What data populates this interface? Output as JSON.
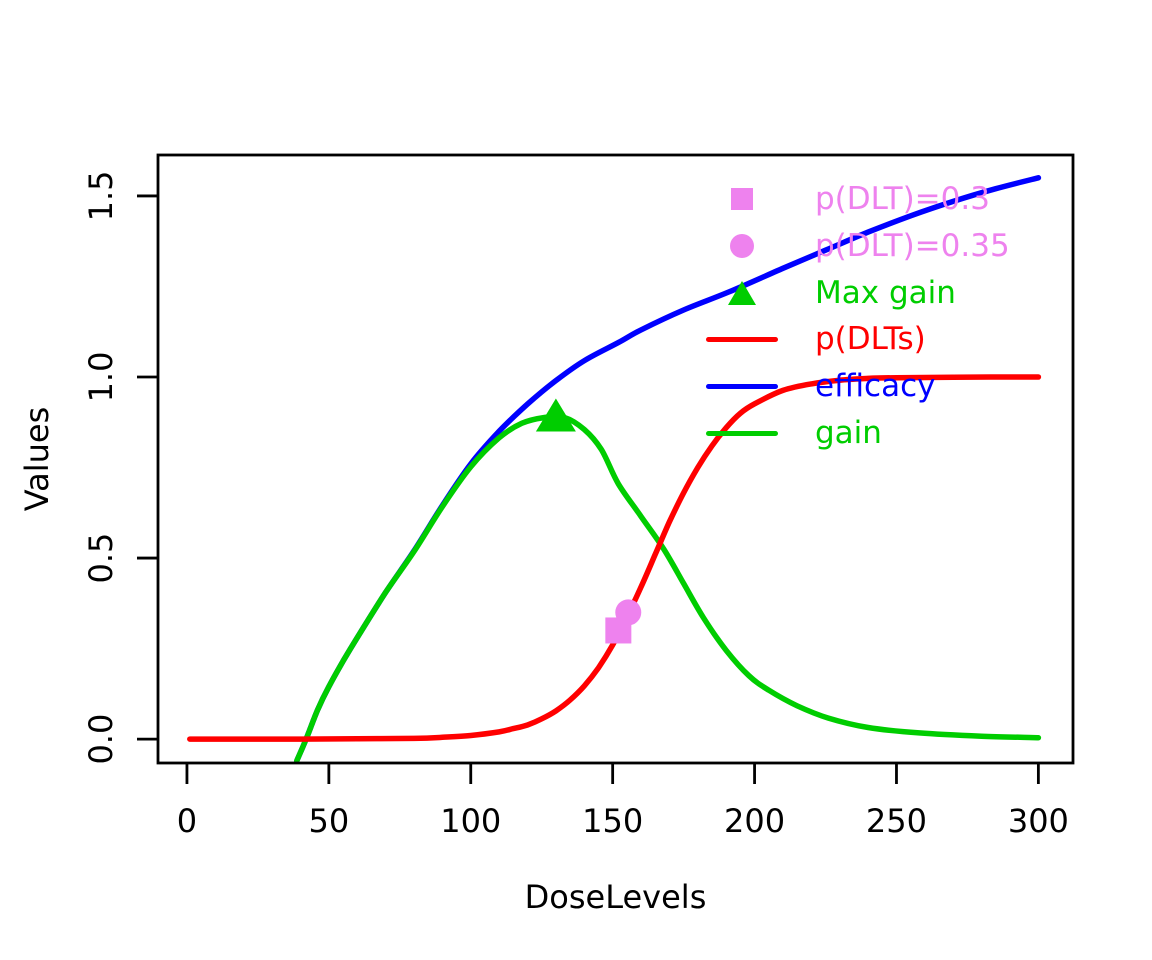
{
  "figure": {
    "background": "#ffffff",
    "axis_color": "#000000"
  },
  "chart_data": {
    "type": "line",
    "title": "",
    "xlabel": "DoseLevels",
    "ylabel": "Values",
    "x_ticks": [
      0,
      50,
      100,
      150,
      200,
      250,
      300
    ],
    "y_ticks": [
      "0.0",
      "0.5",
      "1.0",
      "1.5"
    ],
    "xlim": [
      -10.2,
      312.2
    ],
    "ylim": [
      -0.066,
      1.613
    ],
    "grid": false,
    "legend_position": "topright",
    "series": [
      {
        "name": "efficacy",
        "color": "#0000FF",
        "points": [
          [
            38.7,
            -0.06
          ],
          [
            42,
            0
          ],
          [
            46,
            0.08
          ],
          [
            50,
            0.145
          ],
          [
            55,
            0.215
          ],
          [
            60,
            0.28
          ],
          [
            70,
            0.405
          ],
          [
            80,
            0.52
          ],
          [
            90,
            0.645
          ],
          [
            100,
            0.76
          ],
          [
            110,
            0.85
          ],
          [
            120,
            0.925
          ],
          [
            130,
            0.99
          ],
          [
            140,
            1.045
          ],
          [
            152,
            1.095
          ],
          [
            160,
            1.13
          ],
          [
            175,
            1.185
          ],
          [
            191,
            1.235
          ],
          [
            210,
            1.3
          ],
          [
            225,
            1.35
          ],
          [
            240,
            1.4
          ],
          [
            255,
            1.445
          ],
          [
            270,
            1.485
          ],
          [
            285,
            1.52
          ],
          [
            300,
            1.55
          ]
        ]
      },
      {
        "name": "gain",
        "color": "#00CD00",
        "points": [
          [
            38.7,
            -0.06
          ],
          [
            42,
            0
          ],
          [
            46,
            0.08
          ],
          [
            50,
            0.145
          ],
          [
            55,
            0.215
          ],
          [
            60,
            0.28
          ],
          [
            70,
            0.405
          ],
          [
            80,
            0.518
          ],
          [
            90,
            0.642
          ],
          [
            100,
            0.752
          ],
          [
            110,
            0.832
          ],
          [
            118,
            0.872
          ],
          [
            126,
            0.888
          ],
          [
            133,
            0.888
          ],
          [
            140,
            0.855
          ],
          [
            146,
            0.8
          ],
          [
            152,
            0.705
          ],
          [
            160,
            0.615
          ],
          [
            168,
            0.525
          ],
          [
            175,
            0.43
          ],
          [
            182,
            0.335
          ],
          [
            190,
            0.245
          ],
          [
            198,
            0.175
          ],
          [
            205,
            0.135
          ],
          [
            215,
            0.092
          ],
          [
            226,
            0.058
          ],
          [
            240,
            0.032
          ],
          [
            258,
            0.017
          ],
          [
            280,
            0.008
          ],
          [
            300,
            0.004
          ]
        ]
      },
      {
        "name": "p(DLTs)",
        "color": "#FF0000",
        "points": [
          [
            1,
            0
          ],
          [
            20,
            0
          ],
          [
            40,
            0
          ],
          [
            60,
            0.001
          ],
          [
            80,
            0.002
          ],
          [
            90,
            0.005
          ],
          [
            100,
            0.01
          ],
          [
            110,
            0.02
          ],
          [
            115,
            0.029
          ],
          [
            120,
            0.039
          ],
          [
            125,
            0.056
          ],
          [
            130,
            0.078
          ],
          [
            135,
            0.108
          ],
          [
            140,
            0.147
          ],
          [
            145,
            0.197
          ],
          [
            150,
            0.26
          ],
          [
            155,
            0.337
          ],
          [
            160,
            0.42
          ],
          [
            165,
            0.51
          ],
          [
            170,
            0.6
          ],
          [
            175,
            0.68
          ],
          [
            180,
            0.75
          ],
          [
            185,
            0.81
          ],
          [
            190,
            0.86
          ],
          [
            195,
            0.9
          ],
          [
            200,
            0.926
          ],
          [
            210,
            0.963
          ],
          [
            220,
            0.981
          ],
          [
            230,
            0.991
          ],
          [
            240,
            0.996
          ],
          [
            250,
            0.998
          ],
          [
            270,
            0.9995
          ],
          [
            300,
            1
          ]
        ]
      }
    ],
    "markers": [
      {
        "name": "p(DLT)=0.3",
        "shape": "square",
        "color": "#EE82EE",
        "x": 152,
        "y": 0.3,
        "size": 26
      },
      {
        "name": "p(DLT)=0.35",
        "shape": "circle",
        "color": "#EE82EE",
        "x": 155.5,
        "y": 0.35,
        "size": 26
      },
      {
        "name": "Max gain",
        "shape": "triangle",
        "color": "#00CD00",
        "x": 130,
        "y": 0.895,
        "size": 40
      }
    ],
    "legend": [
      {
        "label": "p(DLT)=0.3",
        "symbol": "square",
        "color": "#EE82EE"
      },
      {
        "label": "p(DLT)=0.35",
        "symbol": "circle",
        "color": "#EE82EE"
      },
      {
        "label": "Max gain",
        "symbol": "triangle",
        "color": "#00CD00"
      },
      {
        "label": "p(DLTs)",
        "symbol": "line",
        "color": "#FF0000"
      },
      {
        "label": "efficacy",
        "symbol": "line",
        "color": "#0000FF"
      },
      {
        "label": "gain",
        "symbol": "line",
        "color": "#00CD00"
      }
    ]
  }
}
